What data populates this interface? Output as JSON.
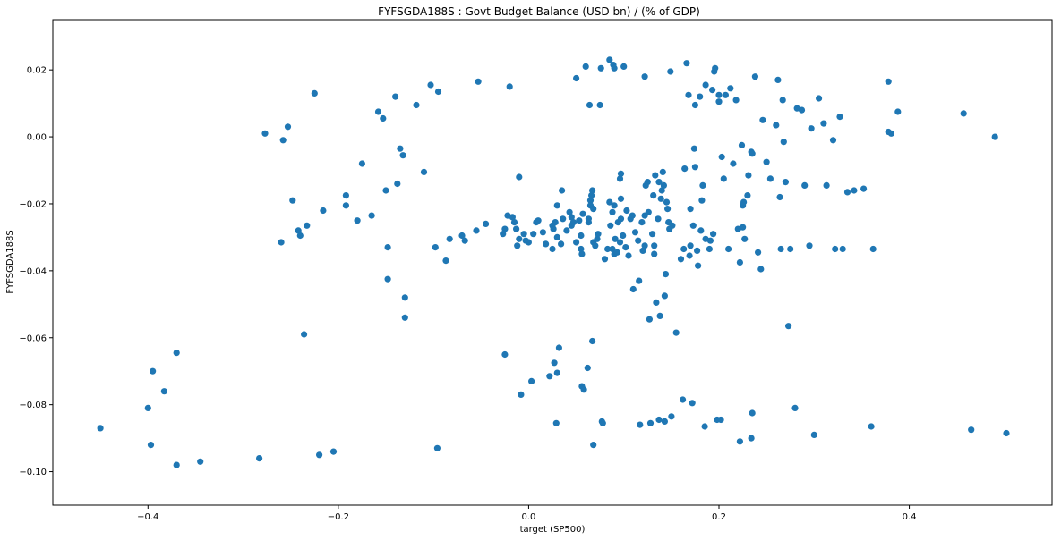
{
  "chart_data": {
    "type": "scatter",
    "title": "FYFSGDA188S :  Govt Budget Balance (USD bn) / (% of GDP)",
    "xlabel": "target (SP500)",
    "ylabel": "FYFSGDA188S",
    "xlim": [
      -0.5,
      0.55
    ],
    "ylim": [
      -0.11,
      0.035
    ],
    "xticks": [
      -0.4,
      -0.2,
      0.0,
      0.2,
      0.4
    ],
    "yticks": [
      -0.1,
      -0.08,
      -0.06,
      -0.04,
      -0.02,
      0.0,
      0.02
    ],
    "xtick_labels": [
      "−0.4",
      "−0.2",
      "0.0",
      "0.2",
      "0.4"
    ],
    "ytick_labels": [
      "−0.10",
      "−0.08",
      "−0.06",
      "−0.04",
      "−0.02",
      "0.00",
      "0.02"
    ],
    "grid": false,
    "marker_color": "#1f77b4",
    "points": [
      [
        -0.45,
        -0.087
      ],
      [
        -0.4,
        -0.081
      ],
      [
        -0.397,
        -0.092
      ],
      [
        -0.395,
        -0.07
      ],
      [
        -0.383,
        -0.076
      ],
      [
        -0.37,
        -0.0645
      ],
      [
        -0.37,
        -0.098
      ],
      [
        -0.345,
        -0.097
      ],
      [
        -0.283,
        -0.096
      ],
      [
        -0.277,
        0.001
      ],
      [
        -0.26,
        -0.0315
      ],
      [
        -0.258,
        -0.001
      ],
      [
        -0.253,
        0.003
      ],
      [
        -0.248,
        -0.019
      ],
      [
        -0.242,
        -0.028
      ],
      [
        -0.24,
        -0.0295
      ],
      [
        -0.236,
        -0.059
      ],
      [
        -0.233,
        -0.0265
      ],
      [
        -0.225,
        0.013
      ],
      [
        -0.22,
        -0.095
      ],
      [
        -0.216,
        -0.022
      ],
      [
        -0.205,
        -0.094
      ],
      [
        -0.192,
        -0.0175
      ],
      [
        -0.192,
        -0.0205
      ],
      [
        -0.18,
        -0.025
      ],
      [
        -0.175,
        -0.008
      ],
      [
        -0.165,
        -0.0235
      ],
      [
        -0.158,
        0.0075
      ],
      [
        -0.153,
        0.0055
      ],
      [
        -0.15,
        -0.016
      ],
      [
        -0.148,
        -0.0425
      ],
      [
        -0.148,
        -0.033
      ],
      [
        -0.14,
        0.012
      ],
      [
        -0.138,
        -0.014
      ],
      [
        -0.135,
        -0.0035
      ],
      [
        -0.132,
        -0.0055
      ],
      [
        -0.13,
        -0.048
      ],
      [
        -0.13,
        -0.054
      ],
      [
        -0.118,
        0.0095
      ],
      [
        -0.11,
        -0.0105
      ],
      [
        -0.103,
        0.0155
      ],
      [
        -0.098,
        -0.033
      ],
      [
        -0.096,
        -0.093
      ],
      [
        -0.095,
        0.0135
      ],
      [
        -0.087,
        -0.037
      ],
      [
        -0.083,
        -0.0305
      ],
      [
        -0.07,
        -0.0295
      ],
      [
        -0.067,
        -0.031
      ],
      [
        -0.055,
        -0.028
      ],
      [
        -0.053,
        0.0165
      ],
      [
        -0.045,
        -0.026
      ],
      [
        -0.027,
        -0.029
      ],
      [
        -0.025,
        -0.0275
      ],
      [
        -0.025,
        -0.065
      ],
      [
        -0.022,
        -0.0235
      ],
      [
        -0.02,
        0.015
      ],
      [
        -0.017,
        -0.024
      ],
      [
        -0.015,
        -0.0255
      ],
      [
        -0.013,
        -0.0275
      ],
      [
        -0.012,
        -0.0325
      ],
      [
        -0.01,
        -0.012
      ],
      [
        -0.01,
        -0.0305
      ],
      [
        -0.008,
        -0.077
      ],
      [
        -0.005,
        -0.029
      ],
      [
        -0.003,
        -0.031
      ],
      [
        0.0,
        -0.0315
      ],
      [
        0.003,
        -0.073
      ],
      [
        0.005,
        -0.029
      ],
      [
        0.008,
        -0.0255
      ],
      [
        0.01,
        -0.025
      ],
      [
        0.015,
        -0.0285
      ],
      [
        0.018,
        -0.032
      ],
      [
        0.022,
        -0.0715
      ],
      [
        0.025,
        -0.0335
      ],
      [
        0.025,
        -0.0265
      ],
      [
        0.026,
        -0.0275
      ],
      [
        0.027,
        -0.0675
      ],
      [
        0.028,
        -0.0255
      ],
      [
        0.029,
        -0.0855
      ],
      [
        0.03,
        -0.0705
      ],
      [
        0.03,
        -0.03
      ],
      [
        0.03,
        -0.0205
      ],
      [
        0.032,
        -0.063
      ],
      [
        0.034,
        -0.032
      ],
      [
        0.035,
        -0.016
      ],
      [
        0.036,
        -0.0245
      ],
      [
        0.04,
        -0.028
      ],
      [
        0.043,
        -0.0225
      ],
      [
        0.045,
        -0.0265
      ],
      [
        0.045,
        -0.024
      ],
      [
        0.047,
        -0.0255
      ],
      [
        0.05,
        -0.0315
      ],
      [
        0.05,
        0.0175
      ],
      [
        0.053,
        -0.025
      ],
      [
        0.055,
        -0.0335
      ],
      [
        0.055,
        -0.0295
      ],
      [
        0.056,
        -0.035
      ],
      [
        0.056,
        -0.0745
      ],
      [
        0.057,
        -0.023
      ],
      [
        0.058,
        -0.0755
      ],
      [
        0.06,
        0.021
      ],
      [
        0.062,
        -0.069
      ],
      [
        0.063,
        -0.0255
      ],
      [
        0.063,
        -0.0245
      ],
      [
        0.064,
        0.0095
      ],
      [
        0.065,
        -0.019
      ],
      [
        0.065,
        -0.0205
      ],
      [
        0.066,
        -0.0175
      ],
      [
        0.067,
        -0.061
      ],
      [
        0.067,
        -0.016
      ],
      [
        0.068,
        -0.0315
      ],
      [
        0.068,
        -0.092
      ],
      [
        0.068,
        -0.0215
      ],
      [
        0.07,
        -0.0325
      ],
      [
        0.072,
        -0.0305
      ],
      [
        0.073,
        -0.029
      ],
      [
        0.075,
        0.0095
      ],
      [
        0.076,
        0.0205
      ],
      [
        0.077,
        -0.085
      ],
      [
        0.078,
        -0.0855
      ],
      [
        0.08,
        -0.0365
      ],
      [
        0.083,
        -0.0335
      ],
      [
        0.085,
        0.023
      ],
      [
        0.085,
        -0.0195
      ],
      [
        0.086,
        -0.0265
      ],
      [
        0.088,
        -0.0335
      ],
      [
        0.088,
        -0.0225
      ],
      [
        0.089,
        0.0215
      ],
      [
        0.09,
        0.0205
      ],
      [
        0.09,
        -0.0205
      ],
      [
        0.09,
        -0.035
      ],
      [
        0.091,
        -0.0305
      ],
      [
        0.093,
        -0.0345
      ],
      [
        0.094,
        -0.0255
      ],
      [
        0.096,
        -0.0315
      ],
      [
        0.096,
        -0.0125
      ],
      [
        0.097,
        -0.011
      ],
      [
        0.097,
        -0.0185
      ],
      [
        0.097,
        -0.0245
      ],
      [
        0.099,
        -0.0295
      ],
      [
        0.1,
        0.021
      ],
      [
        0.102,
        -0.033
      ],
      [
        0.103,
        -0.022
      ],
      [
        0.105,
        -0.0355
      ],
      [
        0.107,
        -0.0245
      ],
      [
        0.109,
        -0.0235
      ],
      [
        0.11,
        -0.0455
      ],
      [
        0.112,
        -0.0285
      ],
      [
        0.115,
        -0.031
      ],
      [
        0.116,
        -0.043
      ],
      [
        0.117,
        -0.086
      ],
      [
        0.119,
        -0.0255
      ],
      [
        0.12,
        -0.034
      ],
      [
        0.122,
        -0.0325
      ],
      [
        0.122,
        0.018
      ],
      [
        0.122,
        -0.0235
      ],
      [
        0.123,
        -0.0145
      ],
      [
        0.125,
        -0.0135
      ],
      [
        0.126,
        -0.0225
      ],
      [
        0.127,
        -0.0545
      ],
      [
        0.128,
        -0.0855
      ],
      [
        0.13,
        -0.029
      ],
      [
        0.131,
        -0.0175
      ],
      [
        0.132,
        -0.0325
      ],
      [
        0.132,
        -0.035
      ],
      [
        0.133,
        -0.0115
      ],
      [
        0.134,
        -0.0495
      ],
      [
        0.136,
        -0.0245
      ],
      [
        0.137,
        -0.0845
      ],
      [
        0.137,
        -0.0135
      ],
      [
        0.138,
        -0.0535
      ],
      [
        0.139,
        -0.0185
      ],
      [
        0.14,
        -0.016
      ],
      [
        0.141,
        -0.0105
      ],
      [
        0.142,
        -0.0145
      ],
      [
        0.143,
        -0.085
      ],
      [
        0.143,
        -0.0475
      ],
      [
        0.144,
        -0.041
      ],
      [
        0.145,
        -0.0195
      ],
      [
        0.146,
        -0.0215
      ],
      [
        0.147,
        -0.0255
      ],
      [
        0.148,
        -0.0275
      ],
      [
        0.149,
        0.0195
      ],
      [
        0.15,
        -0.0835
      ],
      [
        0.151,
        -0.0265
      ],
      [
        0.155,
        -0.0585
      ],
      [
        0.16,
        -0.0365
      ],
      [
        0.162,
        -0.0785
      ],
      [
        0.163,
        -0.0335
      ],
      [
        0.164,
        -0.0095
      ],
      [
        0.166,
        0.022
      ],
      [
        0.168,
        0.0125
      ],
      [
        0.169,
        -0.0355
      ],
      [
        0.17,
        -0.0215
      ],
      [
        0.17,
        -0.0325
      ],
      [
        0.172,
        -0.0795
      ],
      [
        0.173,
        -0.0265
      ],
      [
        0.174,
        -0.0035
      ],
      [
        0.175,
        -0.009
      ],
      [
        0.175,
        0.0095
      ],
      [
        0.177,
        -0.034
      ],
      [
        0.178,
        -0.0385
      ],
      [
        0.18,
        0.012
      ],
      [
        0.181,
        -0.028
      ],
      [
        0.182,
        -0.019
      ],
      [
        0.183,
        -0.0145
      ],
      [
        0.185,
        -0.0865
      ],
      [
        0.186,
        -0.0305
      ],
      [
        0.186,
        0.0155
      ],
      [
        0.19,
        -0.0335
      ],
      [
        0.191,
        -0.031
      ],
      [
        0.193,
        0.014
      ],
      [
        0.194,
        -0.029
      ],
      [
        0.195,
        0.0195
      ],
      [
        0.196,
        0.0205
      ],
      [
        0.198,
        -0.0845
      ],
      [
        0.2,
        0.0105
      ],
      [
        0.2,
        0.0125
      ],
      [
        0.202,
        -0.0845
      ],
      [
        0.203,
        -0.006
      ],
      [
        0.205,
        -0.0125
      ],
      [
        0.207,
        0.0125
      ],
      [
        0.21,
        -0.0335
      ],
      [
        0.212,
        0.0145
      ],
      [
        0.215,
        -0.008
      ],
      [
        0.218,
        0.011
      ],
      [
        0.22,
        -0.0275
      ],
      [
        0.222,
        -0.091
      ],
      [
        0.222,
        -0.0375
      ],
      [
        0.224,
        -0.0025
      ],
      [
        0.225,
        -0.027
      ],
      [
        0.225,
        -0.0205
      ],
      [
        0.226,
        -0.0195
      ],
      [
        0.227,
        -0.0305
      ],
      [
        0.23,
        -0.0175
      ],
      [
        0.231,
        -0.0115
      ],
      [
        0.234,
        -0.09
      ],
      [
        0.234,
        -0.0045
      ],
      [
        0.235,
        -0.0825
      ],
      [
        0.235,
        -0.005
      ],
      [
        0.238,
        0.018
      ],
      [
        0.241,
        -0.0345
      ],
      [
        0.244,
        -0.0395
      ],
      [
        0.246,
        0.005
      ],
      [
        0.25,
        -0.0075
      ],
      [
        0.254,
        -0.0125
      ],
      [
        0.26,
        0.0035
      ],
      [
        0.262,
        0.017
      ],
      [
        0.264,
        -0.018
      ],
      [
        0.265,
        -0.0335
      ],
      [
        0.267,
        0.011
      ],
      [
        0.268,
        -0.0015
      ],
      [
        0.27,
        -0.0135
      ],
      [
        0.273,
        -0.0565
      ],
      [
        0.275,
        -0.0335
      ],
      [
        0.28,
        -0.081
      ],
      [
        0.282,
        0.0085
      ],
      [
        0.287,
        0.008
      ],
      [
        0.29,
        -0.0145
      ],
      [
        0.295,
        -0.0325
      ],
      [
        0.297,
        0.0025
      ],
      [
        0.3,
        -0.089
      ],
      [
        0.305,
        0.0115
      ],
      [
        0.31,
        0.004
      ],
      [
        0.313,
        -0.0145
      ],
      [
        0.32,
        -0.001
      ],
      [
        0.322,
        -0.0335
      ],
      [
        0.327,
        0.006
      ],
      [
        0.33,
        -0.0335
      ],
      [
        0.335,
        -0.0165
      ],
      [
        0.342,
        -0.016
      ],
      [
        0.352,
        -0.0155
      ],
      [
        0.36,
        -0.0865
      ],
      [
        0.362,
        -0.0335
      ],
      [
        0.378,
        0.0015
      ],
      [
        0.378,
        0.0165
      ],
      [
        0.381,
        0.001
      ],
      [
        0.388,
        0.0075
      ],
      [
        0.457,
        0.007
      ],
      [
        0.465,
        -0.0875
      ],
      [
        0.49,
        0.0
      ],
      [
        0.502,
        -0.0885
      ]
    ]
  }
}
